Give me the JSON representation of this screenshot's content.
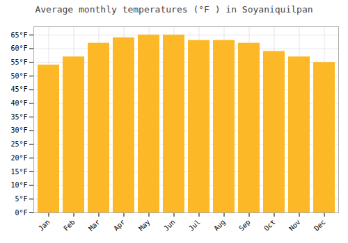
{
  "chart_data": {
    "type": "bar",
    "title": "Average monthly temperatures (°F ) in Soyaniquilpan",
    "categories": [
      "Jan",
      "Feb",
      "Mar",
      "Apr",
      "May",
      "Jun",
      "Jul",
      "Aug",
      "Sep",
      "Oct",
      "Nov",
      "Dec"
    ],
    "values": [
      54,
      57,
      62,
      64,
      65,
      65,
      63,
      63,
      62,
      59,
      57,
      55
    ],
    "color": "#FDB827",
    "ylim": [
      0,
      68
    ],
    "yticks": [
      {
        "value": 0,
        "label": "0°F"
      },
      {
        "value": 5,
        "label": "5°F"
      },
      {
        "value": 10,
        "label": "10°F"
      },
      {
        "value": 15,
        "label": "15°F"
      },
      {
        "value": 20,
        "label": "20°F"
      },
      {
        "value": 25,
        "label": "25°F"
      },
      {
        "value": 30,
        "label": "30°F"
      },
      {
        "value": 35,
        "label": "35°F"
      },
      {
        "value": 40,
        "label": "40°F"
      },
      {
        "value": 45,
        "label": "45°F"
      },
      {
        "value": 50,
        "label": "50°F"
      },
      {
        "value": 55,
        "label": "55°F"
      },
      {
        "value": 60,
        "label": "60°F"
      },
      {
        "value": 65,
        "label": "65°F"
      }
    ],
    "grid": true
  }
}
